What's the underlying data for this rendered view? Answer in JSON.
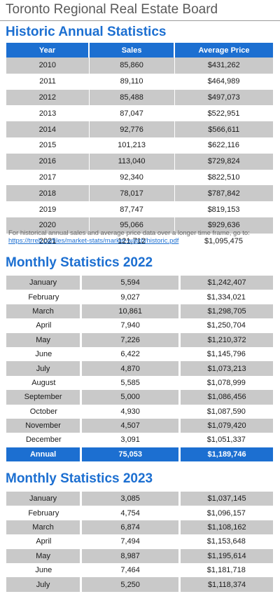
{
  "board_title": "Toronto Regional Real Estate Board",
  "annual": {
    "title": "Historic Annual Statistics",
    "headers": [
      "Year",
      "Sales",
      "Average Price"
    ],
    "rows": [
      [
        "2010",
        "85,860",
        "$431,262"
      ],
      [
        "2011",
        "89,110",
        "$464,989"
      ],
      [
        "2012",
        "85,488",
        "$497,073"
      ],
      [
        "2013",
        "87,047",
        "$522,951"
      ],
      [
        "2014",
        "92,776",
        "$566,611"
      ],
      [
        "2015",
        "101,213",
        "$622,116"
      ],
      [
        "2016",
        "113,040",
        "$729,824"
      ],
      [
        "2017",
        "92,340",
        "$822,510"
      ],
      [
        "2018",
        "78,017",
        "$787,842"
      ],
      [
        "2019",
        "87,747",
        "$819,153"
      ],
      [
        "2020",
        "95,066",
        "$929,636"
      ],
      [
        "2021",
        "121,712",
        "$1,095,475"
      ]
    ],
    "note_text": "For historical annual sales and average price data over a longer time frame, go to:",
    "note_link": "https://trreb.ca/files/market-stats/market-watch/historic.pdf"
  },
  "monthly_2022": {
    "title": "Monthly Statistics 2022",
    "rows": [
      [
        "January",
        "5,594",
        "$1,242,407"
      ],
      [
        "February",
        "9,027",
        "$1,334,021"
      ],
      [
        "March",
        "10,861",
        "$1,298,705"
      ],
      [
        "April",
        "7,940",
        "$1,250,704"
      ],
      [
        "May",
        "7,226",
        "$1,210,372"
      ],
      [
        "June",
        "6,422",
        "$1,145,796"
      ],
      [
        "July",
        "4,870",
        "$1,073,213"
      ],
      [
        "August",
        "5,585",
        "$1,078,999"
      ],
      [
        "September",
        "5,000",
        "$1,086,456"
      ],
      [
        "October",
        "4,930",
        "$1,087,590"
      ],
      [
        "November",
        "4,507",
        "$1,079,420"
      ],
      [
        "December",
        "3,091",
        "$1,051,337"
      ]
    ],
    "annual_row": [
      "Annual",
      "75,053",
      "$1,189,746"
    ]
  },
  "monthly_2023": {
    "title": "Monthly Statistics 2023",
    "rows": [
      [
        "January",
        "3,085",
        "$1,037,145"
      ],
      [
        "February",
        "4,754",
        "$1,096,157"
      ],
      [
        "March",
        "6,874",
        "$1,108,162"
      ],
      [
        "April",
        "7,494",
        "$1,153,648"
      ],
      [
        "May",
        "8,987",
        "$1,195,614"
      ],
      [
        "June",
        "7,464",
        "$1,181,718"
      ],
      [
        "July",
        "5,250",
        "$1,118,374"
      ]
    ]
  },
  "colors": {
    "accent": "#1c6fd1",
    "row_shade": "#c9c9c9"
  }
}
